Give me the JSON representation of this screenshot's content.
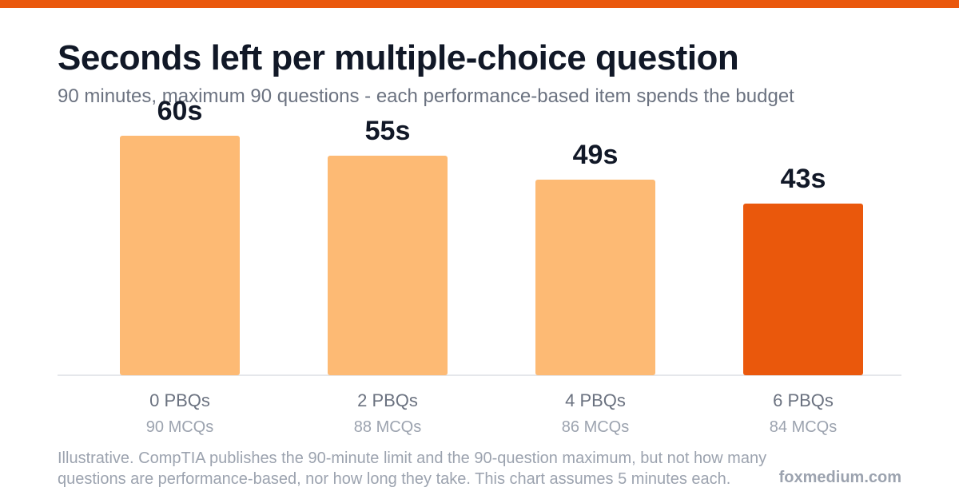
{
  "colors": {
    "top_bar": "#ea580c",
    "bar": "#fdba74",
    "bar_highlight": "#ea580c",
    "value_label": "#111827",
    "category_label": "#6b7280",
    "sub_label": "#9ca3af",
    "baseline": "#e5e7eb"
  },
  "header": {
    "title": "Seconds left per multiple-choice question",
    "subtitle": "90 minutes, maximum 90 questions - each performance-based item spends the budget"
  },
  "footer": {
    "note_line1": "Illustrative. CompTIA publishes the 90-minute limit and the 90-question maximum, but not how many",
    "note_line2": "questions are performance-based, nor how long they take. This chart assumes 5 minutes each.",
    "brand": "foxmedium.com"
  },
  "chart_data": {
    "type": "bar",
    "title": "Seconds left per multiple-choice question",
    "subtitle": "90 minutes, maximum 90 questions - each performance-based item spends the budget",
    "categories": [
      "0 PBQs",
      "2 PBQs",
      "4 PBQs",
      "6 PBQs"
    ],
    "sub_labels": [
      "90 MCQs",
      "88 MCQs",
      "86 MCQs",
      "84 MCQs"
    ],
    "values": [
      60,
      55,
      49,
      43
    ],
    "value_labels": [
      "60s",
      "55s",
      "49s",
      "43s"
    ],
    "highlight_index": 3,
    "ylim": [
      0,
      60
    ],
    "xlabel": "",
    "ylabel": "",
    "grid": false,
    "legend": "none"
  }
}
